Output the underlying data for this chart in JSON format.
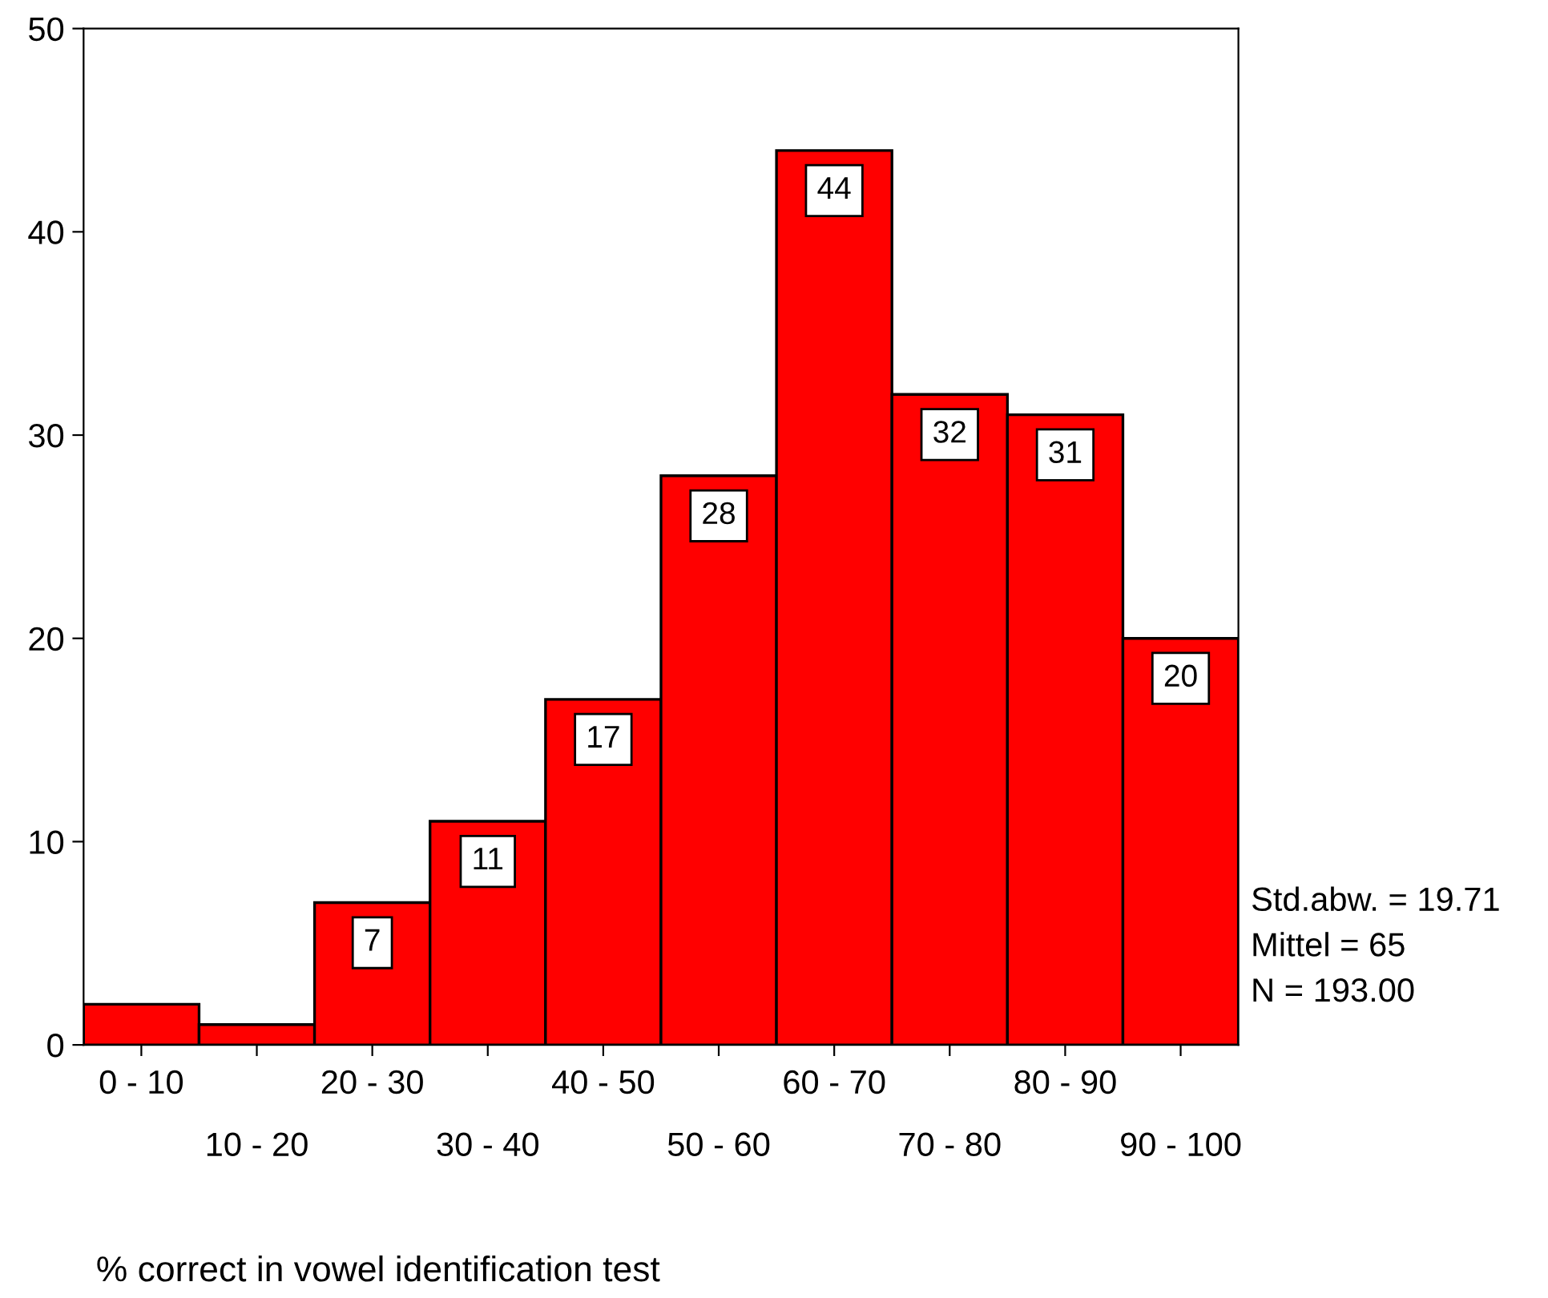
{
  "chart_data": {
    "type": "bar",
    "xlabel": "% correct in vowel identification test",
    "categories": [
      "0 - 10",
      "10 - 20",
      "20 - 30",
      "30 - 40",
      "40 - 50",
      "50 - 60",
      "60 - 70",
      "70 - 80",
      "80 - 90",
      "90 - 100"
    ],
    "values": [
      2,
      1,
      7,
      11,
      17,
      28,
      44,
      32,
      31,
      20
    ],
    "value_labels": [
      null,
      null,
      "7",
      "11",
      "17",
      "28",
      "44",
      "32",
      "31",
      "20"
    ],
    "color": "#ff0000",
    "ylim": [
      0,
      50
    ],
    "yticks": [
      0,
      10,
      20,
      30,
      40,
      50
    ],
    "annotations": [
      "Std.abw. = 19.71",
      "Mittel = 65",
      "N = 193.00"
    ],
    "grid": false
  }
}
